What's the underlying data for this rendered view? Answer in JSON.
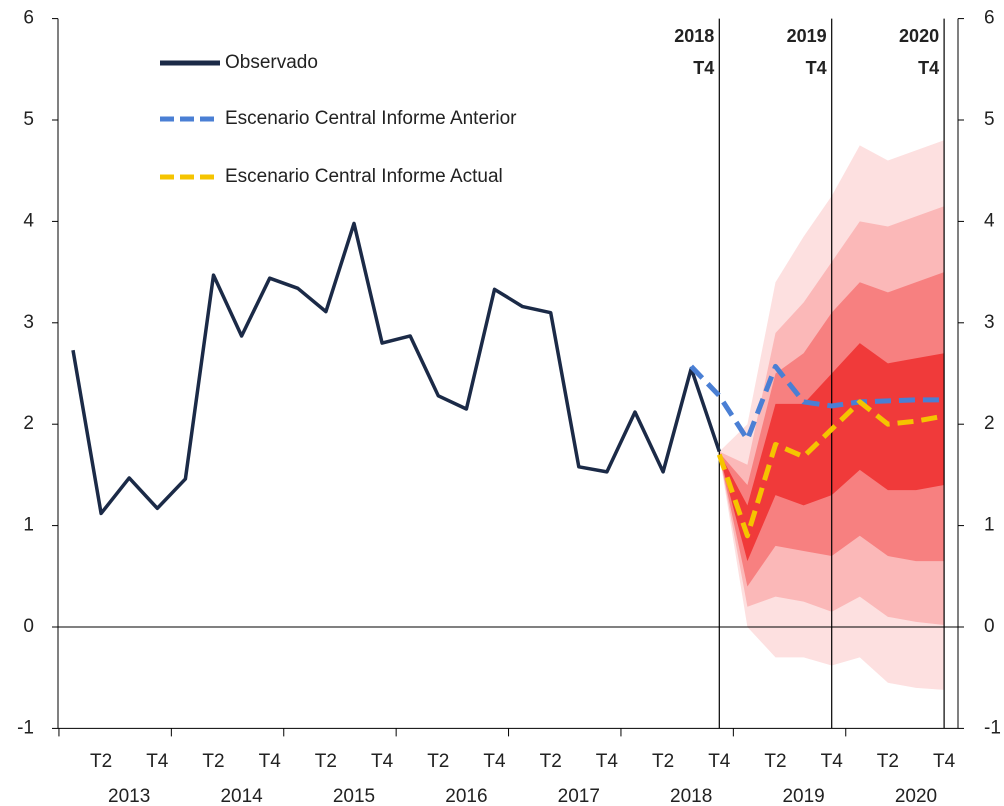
{
  "chart_data": {
    "type": "line",
    "categories": [
      null,
      "T2",
      null,
      "T4",
      null,
      "T2",
      null,
      "T4",
      null,
      "T2",
      null,
      "T4",
      null,
      "T2",
      null,
      "T4",
      null,
      "T2",
      null,
      "T4",
      null,
      "T2",
      null,
      "T4",
      null,
      "T2",
      null,
      "T4",
      null,
      "T2",
      null,
      "T4"
    ],
    "years": [
      "2013",
      "2014",
      "2015",
      "2016",
      "2017",
      "2018",
      "2019",
      "2020"
    ],
    "ylim": [
      -1,
      6
    ],
    "yticks": [
      -1,
      0,
      1,
      2,
      3,
      4,
      5,
      6
    ],
    "y2lim": [
      -1,
      6
    ],
    "y2ticks": [
      -1,
      0,
      1,
      2,
      3,
      4,
      5,
      6
    ],
    "markers": [
      {
        "year": "2018",
        "quarter": "T4"
      },
      {
        "year": "2019",
        "quarter": "T4"
      },
      {
        "year": "2020",
        "quarter": "T4"
      }
    ],
    "series": [
      {
        "name": "Observado",
        "color": "#1b2a47",
        "dash": "solid",
        "values": [
          2.73,
          1.12,
          1.47,
          1.17,
          1.46,
          3.47,
          2.87,
          3.44,
          3.34,
          3.11,
          3.98,
          2.8,
          2.87,
          2.28,
          2.15,
          3.33,
          3.16,
          3.1,
          1.58,
          1.53,
          2.12,
          1.53,
          2.55,
          1.73,
          null,
          null,
          null,
          null,
          null,
          null,
          null,
          null
        ]
      },
      {
        "name": "Escenario Central Informe Anterior",
        "color": "#4a7fd4",
        "dash": "dashed",
        "values": [
          null,
          null,
          null,
          null,
          null,
          null,
          null,
          null,
          null,
          null,
          null,
          null,
          null,
          null,
          null,
          null,
          null,
          null,
          null,
          null,
          null,
          null,
          2.57,
          2.28,
          1.85,
          2.57,
          2.22,
          2.18,
          2.22,
          2.23,
          2.24,
          2.24
        ]
      },
      {
        "name": "Escenario Central Informe Actual",
        "color": "#f5c400",
        "dash": "dashed",
        "values": [
          null,
          null,
          null,
          null,
          null,
          null,
          null,
          null,
          null,
          null,
          null,
          null,
          null,
          null,
          null,
          null,
          null,
          null,
          null,
          null,
          null,
          null,
          null,
          1.7,
          0.9,
          1.8,
          1.68,
          1.95,
          2.22,
          2.0,
          2.03,
          2.08
        ]
      }
    ],
    "fan": [
      {
        "color": "#fde0e0",
        "upper": [
          null,
          null,
          null,
          null,
          null,
          null,
          null,
          null,
          null,
          null,
          null,
          null,
          null,
          null,
          null,
          null,
          null,
          null,
          null,
          null,
          null,
          null,
          null,
          1.73,
          2.0,
          3.4,
          3.85,
          4.25,
          4.75,
          4.6,
          4.7,
          4.8
        ],
        "lower": [
          null,
          null,
          null,
          null,
          null,
          null,
          null,
          null,
          null,
          null,
          null,
          null,
          null,
          null,
          null,
          null,
          null,
          null,
          null,
          null,
          null,
          null,
          null,
          1.7,
          0.0,
          -0.3,
          -0.3,
          -0.38,
          -0.3,
          -0.55,
          -0.6,
          -0.62
        ]
      },
      {
        "color": "#fbb8b8",
        "upper": [
          null,
          null,
          null,
          null,
          null,
          null,
          null,
          null,
          null,
          null,
          null,
          null,
          null,
          null,
          null,
          null,
          null,
          null,
          null,
          null,
          null,
          null,
          null,
          1.73,
          1.6,
          2.9,
          3.2,
          3.6,
          4.0,
          3.95,
          4.05,
          4.15
        ],
        "lower": [
          null,
          null,
          null,
          null,
          null,
          null,
          null,
          null,
          null,
          null,
          null,
          null,
          null,
          null,
          null,
          null,
          null,
          null,
          null,
          null,
          null,
          null,
          null,
          1.7,
          0.2,
          0.3,
          0.25,
          0.15,
          0.3,
          0.1,
          0.05,
          0.02
        ]
      },
      {
        "color": "#f78080",
        "upper": [
          null,
          null,
          null,
          null,
          null,
          null,
          null,
          null,
          null,
          null,
          null,
          null,
          null,
          null,
          null,
          null,
          null,
          null,
          null,
          null,
          null,
          null,
          null,
          1.72,
          1.4,
          2.5,
          2.7,
          3.1,
          3.4,
          3.3,
          3.4,
          3.5
        ],
        "lower": [
          null,
          null,
          null,
          null,
          null,
          null,
          null,
          null,
          null,
          null,
          null,
          null,
          null,
          null,
          null,
          null,
          null,
          null,
          null,
          null,
          null,
          null,
          null,
          1.7,
          0.4,
          0.8,
          0.75,
          0.7,
          0.9,
          0.7,
          0.65,
          0.65
        ]
      },
      {
        "color": "#f03a3a",
        "upper": [
          null,
          null,
          null,
          null,
          null,
          null,
          null,
          null,
          null,
          null,
          null,
          null,
          null,
          null,
          null,
          null,
          null,
          null,
          null,
          null,
          null,
          null,
          null,
          1.72,
          1.2,
          2.2,
          2.2,
          2.5,
          2.8,
          2.6,
          2.65,
          2.7
        ],
        "lower": [
          null,
          null,
          null,
          null,
          null,
          null,
          null,
          null,
          null,
          null,
          null,
          null,
          null,
          null,
          null,
          null,
          null,
          null,
          null,
          null,
          null,
          null,
          null,
          1.7,
          0.65,
          1.3,
          1.2,
          1.3,
          1.55,
          1.35,
          1.35,
          1.4
        ]
      }
    ]
  }
}
